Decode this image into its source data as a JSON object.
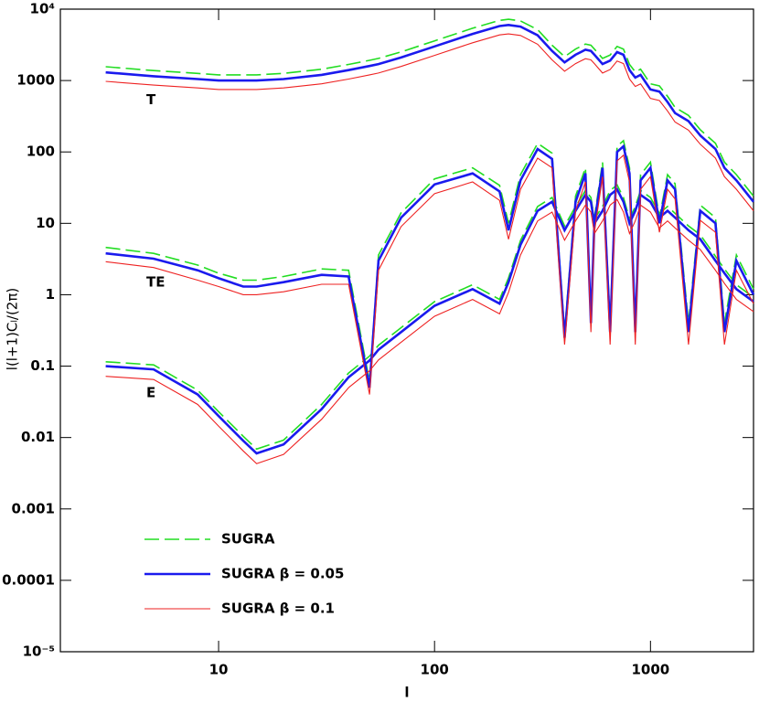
{
  "chart_data": {
    "type": "line",
    "x_label": "l",
    "y_label": "l(l+1)Cₗ/(2π)",
    "log_x": true,
    "log_y": true,
    "xlim": [
      1.85,
      3000
    ],
    "ylim": [
      1e-05,
      10000
    ],
    "xticks": [
      10,
      100,
      1000
    ],
    "yticks": [
      {
        "value": 1e-05,
        "label": "10⁻⁵"
      },
      0.0001,
      0.001,
      0.01,
      0.1,
      1,
      10,
      100,
      1000,
      {
        "value": 10000,
        "label": "10⁴"
      }
    ],
    "legend": "lower left",
    "annotations": [
      "T",
      "TE",
      "E"
    ],
    "x": [
      3,
      5,
      8,
      10,
      13,
      15,
      20,
      30,
      40,
      50,
      55,
      70,
      100,
      150,
      200,
      220,
      250,
      300,
      350,
      400,
      450,
      500,
      530,
      550,
      600,
      650,
      700,
      750,
      800,
      850,
      900,
      1000,
      1100,
      1200,
      1300,
      1500,
      1700,
      2000,
      2200,
      2500,
      3000
    ],
    "series": [
      {
        "name": "SUGRA",
        "color": "#22dd22",
        "line_style": "dashed",
        "line_width": 1.6,
        "T": [
          1560,
          1380,
          1260,
          1200,
          1200,
          1200,
          1260,
          1440,
          1680,
          1920,
          2040,
          2520,
          3600,
          5400,
          6960,
          7200,
          6840,
          5160,
          3120,
          2160,
          2760,
          3240,
          3120,
          2760,
          2040,
          2280,
          3000,
          2760,
          1680,
          1320,
          1440,
          900,
          840,
          600,
          420,
          324,
          204,
          132,
          72,
          48,
          24
        ],
        "TE": [
          4.6,
          3.8,
          2.6,
          2,
          1.6,
          1.6,
          1.8,
          2.3,
          2.2,
          0.06,
          3.6,
          14,
          42,
          60,
          34,
          10,
          48,
          132,
          96,
          0.3,
          24,
          60,
          0.5,
          12,
          72,
          0.4,
          120,
          144,
          60,
          0.4,
          48,
          72,
          12,
          48,
          36,
          0.4,
          18,
          12,
          0.4,
          3.6,
          1.2
        ],
        "E": [
          0.115,
          0.104,
          0.046,
          0.023,
          0.0104,
          0.0069,
          0.0092,
          0.029,
          0.08,
          0.138,
          0.196,
          0.345,
          0.8,
          1.38,
          0.86,
          1.72,
          5.75,
          17.2,
          23,
          9.2,
          17.2,
          28.8,
          23,
          11.5,
          17.2,
          28.8,
          34.5,
          23,
          11.5,
          17.2,
          28.8,
          23,
          13.8,
          17.2,
          13.8,
          9.2,
          6.9,
          3.45,
          2.3,
          1.38,
          0.92
        ]
      },
      {
        "name": "SUGRA β = 0.05",
        "color": "#1a1aee",
        "line_style": "solid",
        "line_width": 2.6,
        "T": [
          1300,
          1150,
          1050,
          1000,
          1000,
          1000,
          1050,
          1200,
          1400,
          1600,
          1700,
          2100,
          3000,
          4500,
          5800,
          6000,
          5700,
          4300,
          2600,
          1800,
          2300,
          2700,
          2600,
          2300,
          1700,
          1900,
          2500,
          2300,
          1400,
          1100,
          1200,
          750,
          700,
          500,
          350,
          270,
          170,
          110,
          60,
          40,
          20
        ],
        "TE": [
          3.8,
          3.2,
          2.2,
          1.7,
          1.3,
          1.3,
          1.5,
          1.9,
          1.8,
          0.05,
          3,
          12,
          35,
          50,
          28,
          8,
          40,
          110,
          80,
          0.25,
          20,
          50,
          0.4,
          10,
          60,
          0.3,
          100,
          120,
          50,
          0.3,
          40,
          60,
          10,
          40,
          30,
          0.3,
          15,
          10,
          0.3,
          3,
          1
        ],
        "E": [
          0.1,
          0.09,
          0.04,
          0.02,
          0.009,
          0.006,
          0.008,
          0.025,
          0.07,
          0.12,
          0.17,
          0.3,
          0.7,
          1.2,
          0.75,
          1.5,
          5,
          15,
          20,
          8,
          15,
          25,
          20,
          10,
          15,
          25,
          30,
          20,
          10,
          15,
          25,
          20,
          12,
          15,
          12,
          8,
          6,
          3,
          2,
          1.2,
          0.8
        ]
      },
      {
        "name": "SUGRA β = 0.1",
        "color": "#ee2222",
        "line_style": "solid",
        "line_width": 1.1,
        "T": [
          975,
          862,
          788,
          750,
          750,
          750,
          788,
          900,
          1050,
          1200,
          1275,
          1575,
          2250,
          3375,
          4350,
          4500,
          4275,
          3225,
          1950,
          1350,
          1725,
          2025,
          1950,
          1725,
          1275,
          1425,
          1875,
          1725,
          1050,
          825,
          900,
          562,
          525,
          375,
          262,
          202,
          128,
          82,
          45,
          30,
          15
        ],
        "TE": [
          2.9,
          2.4,
          1.6,
          1.3,
          1,
          1,
          1.1,
          1.4,
          1.4,
          0.04,
          2.2,
          9,
          26,
          38,
          21,
          6,
          30,
          82,
          60,
          0.2,
          15,
          38,
          0.3,
          7.5,
          45,
          0.2,
          75,
          90,
          38,
          0.2,
          30,
          45,
          7.5,
          30,
          22,
          0.2,
          11,
          7.5,
          0.2,
          2.2,
          0.75
        ],
        "E": [
          0.072,
          0.065,
          0.029,
          0.0144,
          0.0065,
          0.0043,
          0.0058,
          0.018,
          0.05,
          0.086,
          0.122,
          0.216,
          0.5,
          0.86,
          0.54,
          1.08,
          3.6,
          10.8,
          14.4,
          5.8,
          10.8,
          18,
          14.4,
          7.2,
          10.8,
          18,
          21.6,
          14.4,
          7.2,
          10.8,
          18,
          14.4,
          8.6,
          10.8,
          8.6,
          5.8,
          4.3,
          2.2,
          1.44,
          0.86,
          0.58
        ]
      }
    ]
  }
}
